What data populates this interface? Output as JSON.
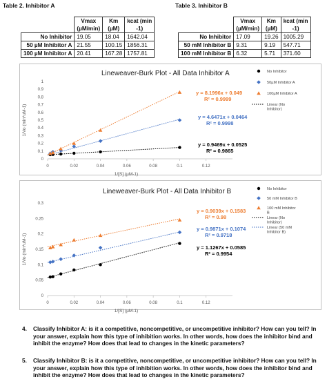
{
  "tableA": {
    "caption": "Table 2. Inhibitor A",
    "headers": [
      "",
      "Vmax",
      "Km",
      "kcat (min-1)"
    ],
    "header_lines": {
      "vmax": [
        "Vmax",
        "(µM/min)"
      ],
      "km": [
        "Km",
        "(µM)"
      ],
      "kcat": [
        "kcat (min",
        "-1)"
      ]
    },
    "rows": [
      {
        "label": "No Inhibitor",
        "vmax": "19.05",
        "km": "18.04",
        "kcat": "1642.04"
      },
      {
        "label": "50 µM Inhibitor A",
        "vmax": "21.55",
        "km": "100.15",
        "kcat": "1856.31"
      },
      {
        "label": "100 µM Inhibitor A",
        "vmax": "20.41",
        "km": "167.28",
        "kcat": "1757.81"
      }
    ]
  },
  "tableB": {
    "caption": "Table 3. Inhibitor B",
    "header_lines": {
      "vmax": [
        "Vmax",
        "(µM/min)"
      ],
      "km": [
        "Km",
        "(µM)"
      ],
      "kcat": [
        "kcat (min",
        "-1)"
      ]
    },
    "rows": [
      {
        "label": "No Inhibitor",
        "vmax": "17.09",
        "km": "19.26",
        "kcat": "1005.29"
      },
      {
        "label": "50 mM Inhibitor B",
        "vmax": "9.31",
        "km": "9.19",
        "kcat": "547.71"
      },
      {
        "label": "100 mM Inhibitor B",
        "vmax": "6.32",
        "km": "5.71",
        "kcat": "371.60"
      }
    ]
  },
  "chart_data": [
    {
      "type": "scatter",
      "title": "Lineweaver-Burk Plot - All Data Inhibitor A",
      "xlabel": "1/[S] (µM-1)",
      "ylabel": "1/Vo (min*uM-1)",
      "xlim": [
        0,
        0.14
      ],
      "ylim": [
        0,
        1
      ],
      "xticks": [
        "0",
        "0.02",
        "0.04",
        "0.06",
        "0.08",
        "0.1",
        "0.12"
      ],
      "yticks": [
        "0",
        "0.1",
        "0.2",
        "0.3",
        "0.4",
        "0.5",
        "0.6",
        "0.7",
        "0.8",
        "0.9",
        "1"
      ],
      "series": [
        {
          "name": "No Inhibitor",
          "color": "#000000",
          "marker": "circle",
          "x": [
            0.002,
            0.004,
            0.01,
            0.02,
            0.04,
            0.1
          ],
          "y": [
            0.054,
            0.056,
            0.062,
            0.072,
            0.09,
            0.147
          ],
          "trend": {
            "slope": 0.9469,
            "intercept": 0.0525,
            "equation": "y = 0.9469x + 0.0525",
            "r2": "R² = 0.9865",
            "color": "#000000"
          }
        },
        {
          "name": "50µM Inhibitor A",
          "color": "#4472c4",
          "marker": "diamond",
          "x": [
            0.002,
            0.004,
            0.01,
            0.02,
            0.04,
            0.1
          ],
          "y": [
            0.07,
            0.09,
            0.11,
            0.16,
            0.23,
            0.5
          ],
          "trend": {
            "slope": 4.6471,
            "intercept": 0.0464,
            "equation": "y = 4.6471x + 0.0464",
            "r2": "R² = 0.9998",
            "color": "#4472c4"
          }
        },
        {
          "name": "100µM Inhibitor A",
          "color": "#ed7d31",
          "marker": "triangle",
          "x": [
            0.002,
            0.004,
            0.01,
            0.02,
            0.04,
            0.1
          ],
          "y": [
            0.07,
            0.08,
            0.13,
            0.2,
            0.37,
            0.86
          ],
          "trend": {
            "slope": 8.1996,
            "intercept": 0.049,
            "equation": "y = 8.1996x + 0.049",
            "r2": "R² = 0.9999",
            "color": "#ed7d31"
          }
        }
      ],
      "legend": {
        "position": "right",
        "entries": [
          "No Inhibitor",
          "50µM Inhibitor A",
          "100µM Inhibitor A",
          "Linear (No Inhibitor)"
        ]
      }
    },
    {
      "type": "scatter",
      "title": "Lineweaver-Burk Plot - All Data Inhibitor B",
      "xlabel": "1/[S] (µM-1)",
      "ylabel": "1/Vo (min*uM-1)",
      "xlim": [
        0,
        0.14
      ],
      "ylim": [
        0,
        0.3
      ],
      "xticks": [
        "0",
        "0.02",
        "0.04",
        "0.06",
        "0.08",
        "0.1",
        "0.12"
      ],
      "yticks": [
        "0",
        "0.05",
        "0.1",
        "0.15",
        "0.2",
        "0.25",
        "0.3"
      ],
      "series": [
        {
          "name": "No Inhibitor",
          "color": "#000000",
          "marker": "circle",
          "x": [
            0.002,
            0.004,
            0.01,
            0.02,
            0.04,
            0.1
          ],
          "y": [
            0.06,
            0.061,
            0.07,
            0.083,
            0.1,
            0.169
          ],
          "trend": {
            "slope": 1.1267,
            "intercept": 0.0585,
            "equation": "y = 1.1267x + 0.0585",
            "r2": "R² = 0.9954",
            "color": "#000000"
          }
        },
        {
          "name": "50 mM Inhibitor B",
          "color": "#4472c4",
          "marker": "diamond",
          "x": [
            0.002,
            0.004,
            0.01,
            0.02,
            0.04,
            0.1
          ],
          "y": [
            0.108,
            0.11,
            0.118,
            0.13,
            0.155,
            0.205
          ],
          "trend": {
            "slope": 0.9871,
            "intercept": 0.1074,
            "equation": "y = 0.9871x + 0.1074",
            "r2": "R² = 0.9718",
            "color": "#4472c4"
          }
        },
        {
          "name": "100 mM Inhibitor B",
          "color": "#ed7d31",
          "marker": "triangle",
          "x": [
            0.002,
            0.004,
            0.01,
            0.02,
            0.04,
            0.1
          ],
          "y": [
            0.155,
            0.158,
            0.165,
            0.18,
            0.195,
            0.245
          ],
          "trend": {
            "slope": 0.9039,
            "intercept": 0.1583,
            "equation": "y = 0.9039x + 0.1583",
            "r2": "R² = 0.98",
            "color": "#ed7d31"
          }
        }
      ],
      "legend": {
        "position": "right",
        "entries": [
          "No Inhibitor",
          "50 mM Inhibitor B",
          "100 mM Inhibitor B",
          "Linear (No Inhibitor)",
          "Linear (50 mM Inhibitor B)"
        ]
      }
    }
  ],
  "questions": [
    {
      "number": "4.",
      "text": "Classify Inhibitor A: is it a competitive, noncompetitive, or uncompetitive inhibitor? How can you tell? In your answer, explain how this type of inhibition works. In other words, how does the inhibitor bind and inhibit the enzyme? How does that lead to changes in the kinetic parameters?"
    },
    {
      "number": "5.",
      "text": "Classify Inhibitor B: is it a competitive, noncompetitive, or uncompetitive inhibitor? How can you tell? In your answer, explain how this type of inhibition works. In other words, how does the inhibitor bind and inhibit the enzyme? How does that lead to changes in the kinetic parameters?"
    }
  ]
}
